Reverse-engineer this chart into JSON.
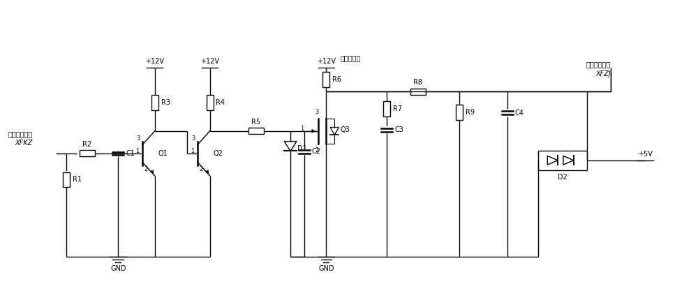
{
  "fig_width": 10.0,
  "fig_height": 4.3,
  "dpi": 100,
  "bg_color": "#ffffff",
  "line_color": "#000000",
  "lw": 1.0,
  "fs": 7.0,
  "xlim": [
    0,
    100
  ],
  "ylim": [
    0,
    43
  ]
}
